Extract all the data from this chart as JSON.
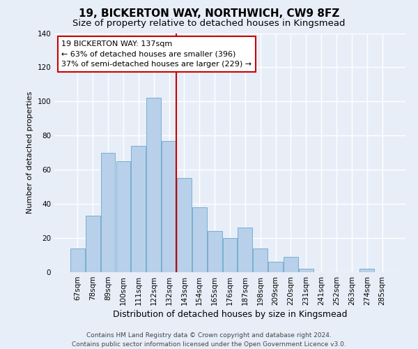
{
  "title": "19, BICKERTON WAY, NORTHWICH, CW9 8FZ",
  "subtitle": "Size of property relative to detached houses in Kingsmead",
  "xlabel": "Distribution of detached houses by size in Kingsmead",
  "ylabel": "Number of detached properties",
  "bar_labels": [
    "67sqm",
    "78sqm",
    "89sqm",
    "100sqm",
    "111sqm",
    "122sqm",
    "132sqm",
    "143sqm",
    "154sqm",
    "165sqm",
    "176sqm",
    "187sqm",
    "198sqm",
    "209sqm",
    "220sqm",
    "231sqm",
    "241sqm",
    "252sqm",
    "263sqm",
    "274sqm",
    "285sqm"
  ],
  "bar_heights": [
    14,
    33,
    70,
    65,
    74,
    102,
    77,
    55,
    38,
    24,
    20,
    26,
    14,
    6,
    9,
    2,
    0,
    0,
    0,
    2,
    0
  ],
  "bar_color": "#b8d0ea",
  "bar_edge_color": "#7aaecf",
  "vline_x_index": 6,
  "vline_color": "#cc0000",
  "ylim": [
    0,
    140
  ],
  "yticks": [
    0,
    20,
    40,
    60,
    80,
    100,
    120,
    140
  ],
  "annotation_title": "19 BICKERTON WAY: 137sqm",
  "annotation_line1": "← 63% of detached houses are smaller (396)",
  "annotation_line2": "37% of semi-detached houses are larger (229) →",
  "annotation_box_color": "#ffffff",
  "annotation_box_edge": "#cc0000",
  "footer_line1": "Contains HM Land Registry data © Crown copyright and database right 2024.",
  "footer_line2": "Contains public sector information licensed under the Open Government Licence v3.0.",
  "bg_color": "#e8eef8",
  "plot_bg_color": "#e8eef8",
  "grid_color": "#ffffff",
  "title_fontsize": 11,
  "subtitle_fontsize": 9.5,
  "ylabel_fontsize": 8,
  "xlabel_fontsize": 9,
  "tick_fontsize": 7.5,
  "footer_fontsize": 6.5,
  "annotation_fontsize": 8
}
